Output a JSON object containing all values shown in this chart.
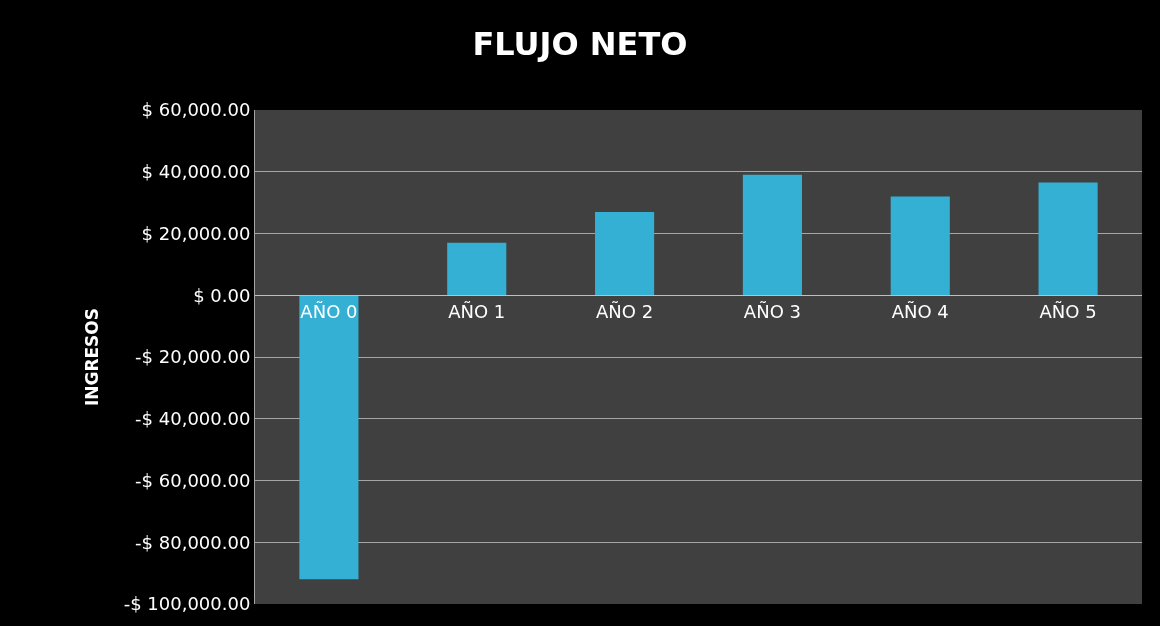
{
  "chart_data": {
    "type": "bar",
    "title": "FLUJO NETO",
    "ylabel": "INGRESOS",
    "categories": [
      "AÑO 0",
      "AÑO 1",
      "AÑO 2",
      "AÑO 3",
      "AÑO 4",
      "AÑO 5"
    ],
    "values": [
      -92000,
      17000,
      27000,
      39000,
      32000,
      36500
    ],
    "color": "#33b0d4",
    "ylim": [
      -100000,
      60000
    ],
    "yticks": [
      {
        "value": -100000,
        "label": "-$ 100,000.00"
      },
      {
        "value": -80000,
        "label": "-$ 80,000.00"
      },
      {
        "value": -60000,
        "label": "-$ 60,000.00"
      },
      {
        "value": -40000,
        "label": "-$ 40,000.00"
      },
      {
        "value": -20000,
        "label": "-$ 20,000.00"
      },
      {
        "value": 0,
        "label": "$ 0.00"
      },
      {
        "value": 20000,
        "label": "$ 20,000.00"
      },
      {
        "value": 40000,
        "label": "$ 40,000.00"
      },
      {
        "value": 60000,
        "label": "$ 60,000.00"
      }
    ],
    "grid": "y"
  }
}
